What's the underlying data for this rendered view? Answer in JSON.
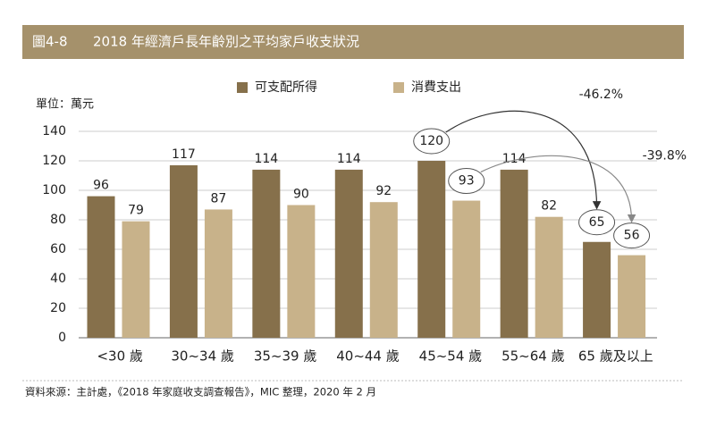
{
  "chart_data": {
    "type": "bar",
    "figure_label": "圖4-8",
    "title": "2018 年經濟戶長年齡別之平均家戶收支狀況",
    "unit_label": "單位：萬元",
    "source": "資料來源：主計處，《2018 年家庭收支調查報告》，MIC 整理，2020 年 2 月",
    "categories": [
      "<30 歲",
      "30~34 歲",
      "35~39 歲",
      "40~44 歲",
      "45~54 歲",
      "55~64 歲",
      "65 歲及以上"
    ],
    "series": [
      {
        "name": "可支配所得",
        "color": "#86704b",
        "values": [
          96,
          117,
          114,
          114,
          120,
          114,
          65
        ]
      },
      {
        "name": "消費支出",
        "color": "#c8b28a",
        "values": [
          79,
          87,
          90,
          92,
          93,
          82,
          56
        ]
      }
    ],
    "ylim": [
      0,
      140
    ],
    "yticks": [
      0,
      20,
      40,
      60,
      80,
      100,
      120,
      140
    ],
    "grid": true,
    "annotations": [
      {
        "text": "-46.2%",
        "series": 0,
        "from": 4,
        "to": 6
      },
      {
        "text": "-39.8%",
        "series": 1,
        "from": 4,
        "to": 6
      }
    ]
  }
}
